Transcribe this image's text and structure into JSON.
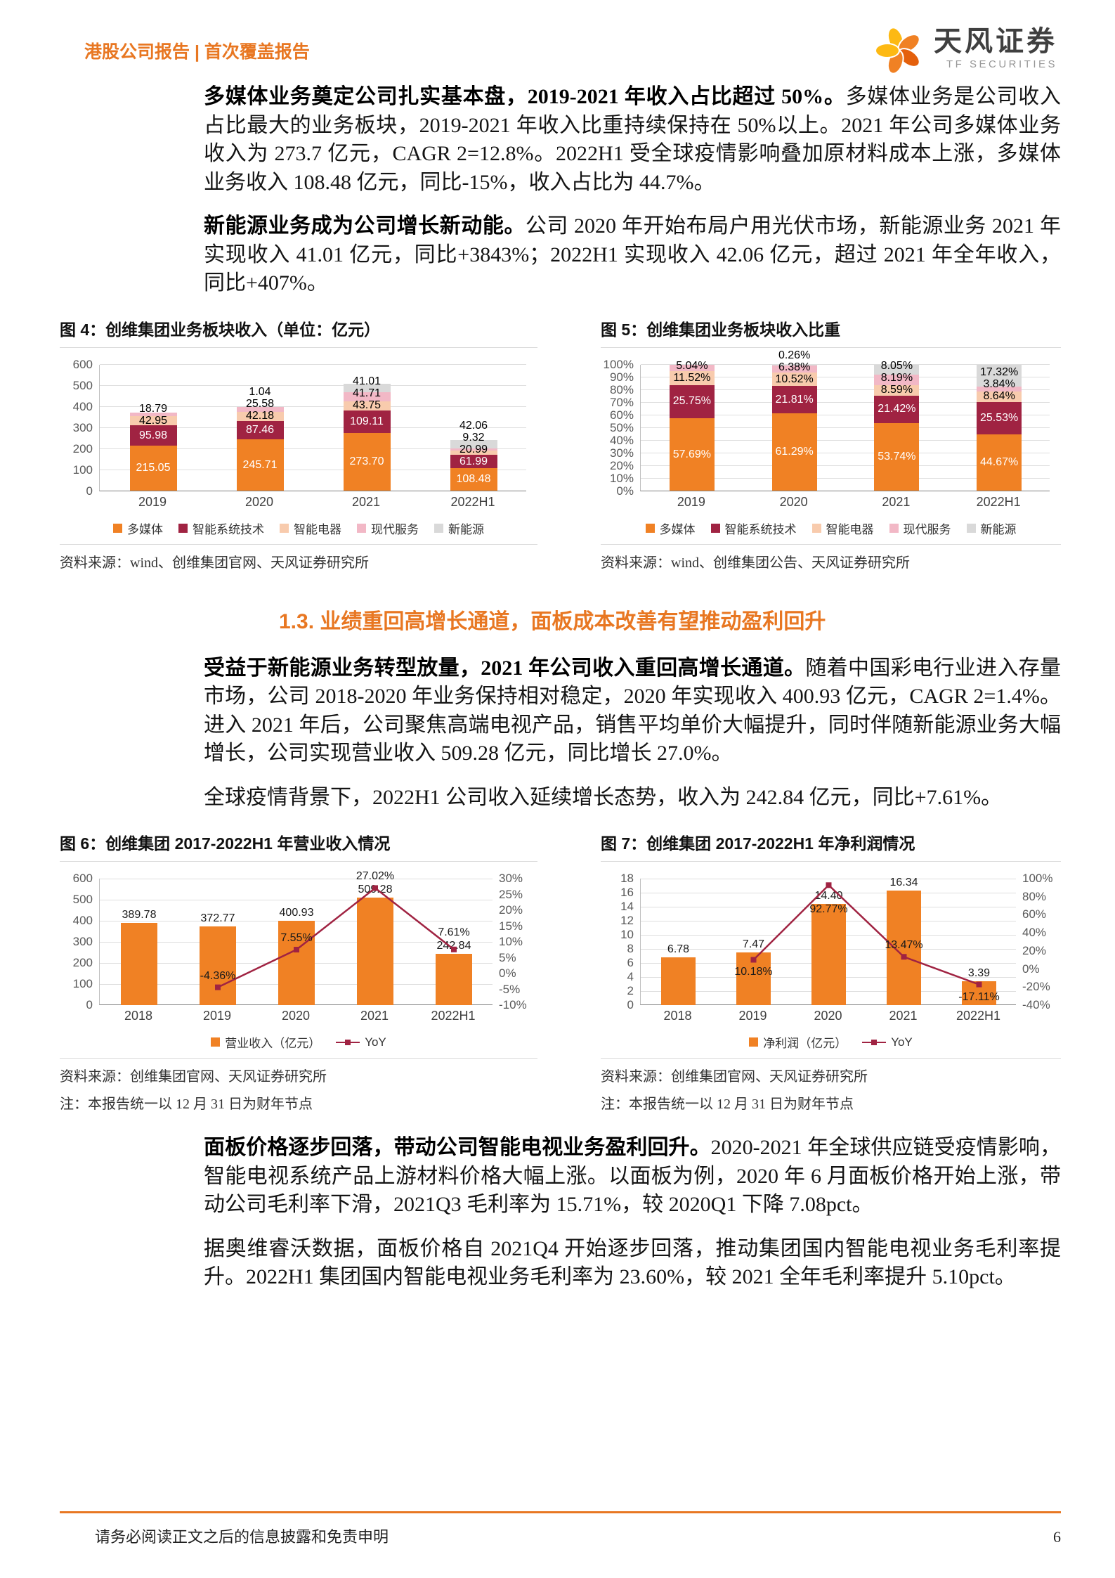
{
  "theme": {
    "accent_orange": "#E87722",
    "bar_orange": "#F08124",
    "dark_red": "#A02342",
    "peach": "#F8CBAD",
    "pink": "#F2B8C6",
    "gray": "#D9D9D9"
  },
  "header": {
    "report_type": "港股公司报告 | 首次覆盖报告",
    "logo_cn": "天风证券",
    "logo_en": "TF SECURITIES"
  },
  "body": {
    "p1_bold": "多媒体业务奠定公司扎实基本盘，2019-2021 年收入占比超过 50%。",
    "p1_text": "多媒体业务是公司收入占比最大的业务板块，2019-2021 年收入比重持续保持在 50%以上。2021 年公司多媒体业务收入为 273.7 亿元，CAGR 2=12.8%。2022H1 受全球疫情影响叠加原材料成本上涨，多媒体业务收入 108.48 亿元，同比-15%，收入占比为 44.7%。",
    "p2_bold": "新能源业务成为公司增长新动能。",
    "p2_text": "公司 2020 年开始布局户用光伏市场，新能源业务 2021 年实现收入 41.01 亿元，同比+3843%；2022H1 实现收入 42.06 亿元，超过 2021 年全年收入，同比+407%。",
    "section_heading": "1.3. 业绩重回高增长通道，面板成本改善有望推动盈利回升",
    "p3_bold": "受益于新能源业务转型放量，2021 年公司收入重回高增长通道。",
    "p3_text": "随着中国彩电行业进入存量市场，公司 2018-2020 年业务保持相对稳定，2020 年实现收入 400.93 亿元，CAGR 2=1.4%。进入 2021 年后，公司聚焦高端电视产品，销售平均单价大幅提升，同时伴随新能源业务大幅增长，公司实现营业收入 509.28 亿元，同比增长 27.0%。",
    "p4_text": "全球疫情背景下，2022H1 公司收入延续增长态势，收入为 242.84 亿元，同比+7.61%。",
    "p5_bold": "面板价格逐步回落，带动公司智能电视业务盈利回升。",
    "p5_text": "2020-2021 年全球供应链受疫情影响，智能电视系统产品上游材料价格大幅上涨。以面板为例，2020 年 6 月面板价格开始上涨，带动公司毛利率下滑，2021Q3 毛利率为 15.71%，较 2020Q1 下降 7.08pct。",
    "p6_text": "据奥维睿沃数据，面板价格自 2021Q4 开始逐步回落，推动集团国内智能电视业务毛利率提升。2022H1 集团国内智能电视业务毛利率为 23.60%，较 2021 全年毛利率提升 5.10pct。"
  },
  "footer": {
    "disclaimer": "请务必阅读正文之后的信息披露和免责申明",
    "page_number": "6"
  },
  "chart_data": [
    {
      "id": "fig4",
      "type": "bar",
      "variant": "stacked",
      "title": "图 4：创维集团业务板块收入（单位：亿元）",
      "categories": [
        "2019",
        "2020",
        "2021",
        "2022H1"
      ],
      "series": [
        {
          "name": "多媒体",
          "color": "#F08124",
          "label_color": "#ffffff",
          "values": [
            215.05,
            245.71,
            273.7,
            108.48
          ]
        },
        {
          "name": "智能系统技术",
          "color": "#A02342",
          "label_color": "#ffffff",
          "values": [
            95.98,
            87.46,
            109.11,
            61.99
          ]
        },
        {
          "name": "智能电器",
          "color": "#F8CBAD",
          "label_color": "#000000",
          "values": [
            42.95,
            42.18,
            43.75,
            20.99
          ]
        },
        {
          "name": "现代服务",
          "color": "#F2B8C6",
          "label_color": "#000000",
          "values": [
            18.79,
            25.58,
            41.71,
            9.32
          ]
        },
        {
          "name": "新能源",
          "color": "#D9D9D9",
          "label_color": "#000000",
          "values": [
            0,
            1.04,
            41.01,
            42.06
          ]
        }
      ],
      "ylim": [
        0,
        600
      ],
      "ytick_step": 100,
      "grid": true,
      "legend_position": "bottom",
      "source": "资料来源：wind、创维集团官网、天风证券研究所"
    },
    {
      "id": "fig5",
      "type": "bar",
      "variant": "percent",
      "title": "图 5：创维集团业务板块收入比重",
      "categories": [
        "2019",
        "2020",
        "2021",
        "2022H1"
      ],
      "series": [
        {
          "name": "多媒体",
          "color": "#F08124",
          "label_color": "#ffffff",
          "values": [
            57.69,
            61.29,
            53.74,
            44.67
          ],
          "labels": [
            "57.69%",
            "61.29%",
            "53.74%",
            "44.67%"
          ]
        },
        {
          "name": "智能系统技术",
          "color": "#A02342",
          "label_color": "#ffffff",
          "values": [
            25.75,
            21.81,
            21.42,
            25.53
          ],
          "labels": [
            "25.75%",
            "21.81%",
            "21.42%",
            "25.53%"
          ]
        },
        {
          "name": "智能电器",
          "color": "#F8CBAD",
          "label_color": "#000000",
          "values": [
            11.52,
            10.52,
            8.59,
            8.64
          ],
          "labels": [
            "11.52%",
            "10.52%",
            "8.59%",
            "8.64%"
          ]
        },
        {
          "name": "现代服务",
          "color": "#F2B8C6",
          "label_color": "#000000",
          "values": [
            5.04,
            6.38,
            8.19,
            3.84
          ],
          "labels": [
            "5.04%",
            "6.38%",
            "8.19%",
            "3.84%"
          ]
        },
        {
          "name": "新能源",
          "color": "#D9D9D9",
          "label_color": "#000000",
          "values": [
            0,
            0.26,
            8.05,
            17.32
          ],
          "labels": [
            "",
            "0.26%",
            "8.05%",
            "17.32%"
          ]
        }
      ],
      "ylim": [
        0,
        100
      ],
      "ytick_step": 10,
      "ytick_suffix": "%",
      "grid": true,
      "legend_position": "bottom",
      "source": "资料来源：wind、创维集团公告、天风证券研究所"
    },
    {
      "id": "fig6",
      "type": "bar",
      "variant": "bar_line",
      "title": "图 6：创维集团 2017-2022H1 年营业收入情况",
      "categories": [
        "2018",
        "2019",
        "2020",
        "2021",
        "2022H1"
      ],
      "bar": {
        "name": "营业收入（亿元）",
        "color": "#F08124",
        "values": [
          389.78,
          372.77,
          400.93,
          509.28,
          242.84
        ],
        "labels": [
          "389.78",
          "372.77",
          "400.93",
          "509.28",
          "242.84"
        ]
      },
      "line": {
        "name": "YoY",
        "color": "#A02342",
        "values": [
          null,
          -4.36,
          7.55,
          27.02,
          7.61
        ],
        "labels": [
          "",
          "-4.36%",
          "7.55%",
          "27.02%",
          "7.61%"
        ],
        "label_pos": [
          "",
          "above",
          "above",
          "above",
          "above"
        ]
      },
      "ylim_left": [
        0,
        600
      ],
      "ytick_step_left": 100,
      "ylim_right": [
        -10,
        30
      ],
      "ytick_step_right": 5,
      "ytick_suffix_right": "%",
      "grid": true,
      "legend_position": "bottom",
      "source": "资料来源：创维集团官网、天风证券研究所",
      "note": "注：本报告统一以 12 月 31 日为财年节点"
    },
    {
      "id": "fig7",
      "type": "bar",
      "variant": "bar_line",
      "title": "图 7：创维集团 2017-2022H1 年净利润情况",
      "categories": [
        "2018",
        "2019",
        "2020",
        "2021",
        "2022H1"
      ],
      "bar": {
        "name": "净利润（亿元）",
        "color": "#F08124",
        "values": [
          6.78,
          7.47,
          14.4,
          16.34,
          3.39
        ],
        "labels": [
          "6.78",
          "7.47",
          "14.40",
          "16.34",
          "3.39"
        ]
      },
      "line": {
        "name": "YoY",
        "color": "#A02342",
        "values": [
          null,
          10.18,
          92.77,
          13.47,
          -17.11
        ],
        "labels": [
          "",
          "10.18%",
          "92.77%",
          "13.47%",
          "-17.11%"
        ],
        "label_pos": [
          "",
          "below",
          "below",
          "above",
          "below"
        ]
      },
      "ylim_left": [
        0,
        18
      ],
      "ytick_step_left": 2,
      "ylim_right": [
        -40,
        100
      ],
      "ytick_step_right": 20,
      "ytick_suffix_right": "%",
      "grid": true,
      "legend_position": "bottom",
      "source": "资料来源：创维集团官网、天风证券研究所",
      "note": "注：本报告统一以 12 月 31 日为财年节点"
    }
  ]
}
